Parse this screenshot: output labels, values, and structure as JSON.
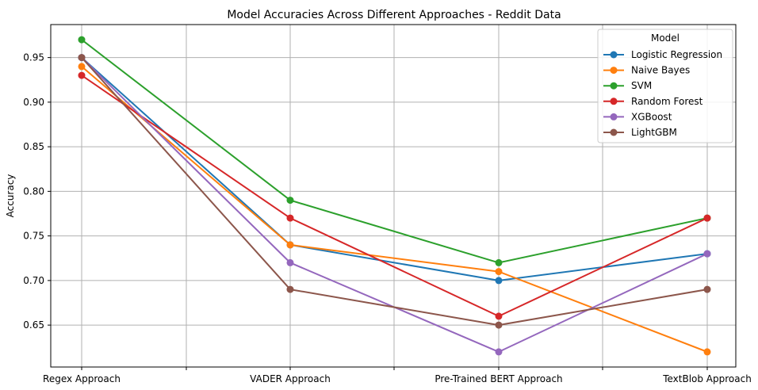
{
  "chart_data": {
    "type": "line",
    "title": "Model Accuracies Across Different Approaches - Reddit Data",
    "xlabel": "",
    "ylabel": "Accuracy",
    "categories": [
      "Regex Approach",
      "VADER Approach",
      "Pre-Trained BERT Approach",
      "TextBlob Approach"
    ],
    "ylim": [
      0.603,
      0.987
    ],
    "yticks": [
      "0.65",
      "0.70",
      "0.75",
      "0.80",
      "0.85",
      "0.90",
      "0.95"
    ],
    "grid": true,
    "legend": {
      "title": "Model",
      "position": "top-right"
    },
    "series": [
      {
        "name": "Logistic Regression",
        "color": "#1f77b4",
        "values": [
          0.95,
          0.74,
          0.7,
          0.73
        ]
      },
      {
        "name": "Naive Bayes",
        "color": "#ff7f0e",
        "values": [
          0.94,
          0.74,
          0.71,
          0.62
        ]
      },
      {
        "name": "SVM",
        "color": "#2ca02c",
        "values": [
          0.97,
          0.79,
          0.72,
          0.77
        ]
      },
      {
        "name": "Random Forest",
        "color": "#d62728",
        "values": [
          0.93,
          0.77,
          0.66,
          0.77
        ]
      },
      {
        "name": "XGBoost",
        "color": "#9467bd",
        "values": [
          0.95,
          0.72,
          0.62,
          0.73
        ]
      },
      {
        "name": "LightGBM",
        "color": "#8c564b",
        "values": [
          0.95,
          0.69,
          0.65,
          0.69
        ]
      }
    ]
  }
}
